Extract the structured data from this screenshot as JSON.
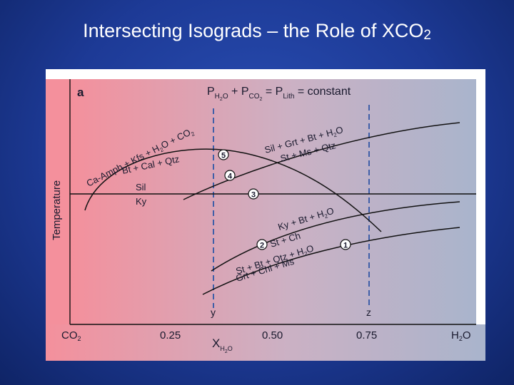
{
  "slide": {
    "title": "Intersecting Isograds – the Role of XCO",
    "title_sub": "2"
  },
  "colors": {
    "gradient_left": "#f4909c",
    "gradient_right": "#a9b4cc",
    "line": "#111111",
    "dashed": "#3f5fa8"
  },
  "diagram": {
    "panel_label": "a",
    "header": {
      "p1": "P",
      "p1_sub": "H",
      "p1_subsub": "2",
      "p1_subtail": "O",
      "plus": " + ",
      "p2": "P",
      "p2_sub": "CO",
      "p2_subsub": "2",
      "eq": " = ",
      "p3": "P",
      "p3_sub": "Lith",
      "tail": " = constant"
    },
    "ylabel": "Temperature",
    "xlabel": "X",
    "xlabel_sub": "H",
    "xlabel_subsub": "2",
    "xlabel_subtail": "O",
    "x_ticks": {
      "left": "CO",
      "left_sub": "2",
      "t1": "0.25",
      "t2": "0.50",
      "t3": "0.75",
      "right": "H",
      "right_sub": "2",
      "right_tail": "O"
    },
    "dashed_labels": {
      "y": "y",
      "z": "z"
    },
    "reactions": {
      "r5_upper": "Ca-Amph + Kfs + H",
      "r5_upper_sub": "2",
      "r5_upper_tail": "O + CO",
      "r5_upper_sub2": "2",
      "r5_lower": "Bt + Cal + Qtz",
      "r_sil": "Sil",
      "r_ky": "Ky",
      "r4_upper": "Sil + Grt + Bt + H",
      "r4_upper_sub": "2",
      "r4_upper_tail": "O",
      "r4_lower": "St + Ms + Qtz",
      "r1_upper": "Ky + Bt + H",
      "r1_upper_sub": "2",
      "r1_upper_tail": "O",
      "r1_mid": "St + Ch",
      "r2_upper": "St + Bt + Qtz + H",
      "r2_upper_sub": "2",
      "r2_upper_tail": "O",
      "r2_lower": "Grt + Chl + Ms"
    },
    "circle_labels": [
      "1",
      "2",
      "3",
      "4",
      "5"
    ]
  }
}
